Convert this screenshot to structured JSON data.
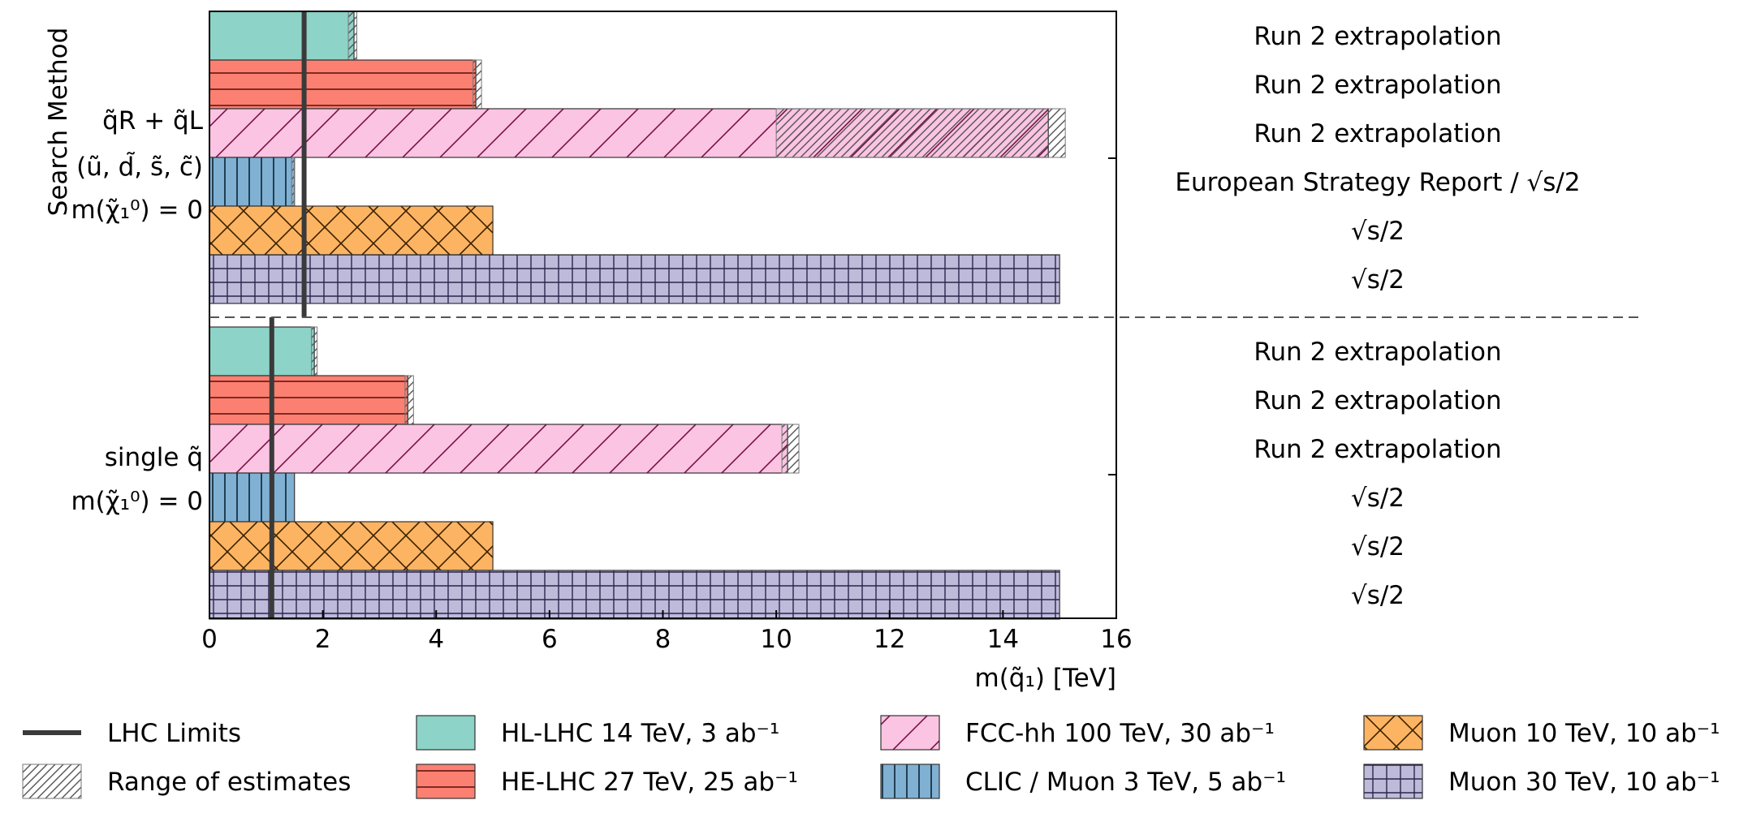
{
  "chart_data": {
    "type": "bar",
    "orientation": "horizontal",
    "xlabel": "m(q̃₁) [TeV]",
    "ylabel": "Search Method",
    "xlim": [
      0,
      16
    ],
    "xticks": [
      "0",
      "2",
      "4",
      "6",
      "8",
      "10",
      "12",
      "14",
      "16"
    ],
    "groups": [
      {
        "lines": [
          "q̃R + q̃L",
          "(ũ, d̃, s̃, c̃)",
          "m(χ̃₁⁰) = 0"
        ],
        "lhc_limit": 1.67,
        "bars": [
          {
            "series": "hl",
            "value": 2.55,
            "range": [
              2.45,
              2.6
            ],
            "note": "Run 2 extrapolation"
          },
          {
            "series": "he",
            "value": 4.7,
            "range": [
              4.65,
              4.8
            ],
            "note": "Run 2 extrapolation"
          },
          {
            "series": "fcc",
            "value": 14.8,
            "range": [
              10.0,
              15.1
            ],
            "note": "Run 2 extrapolation"
          },
          {
            "series": "clic",
            "value": 1.5,
            "range": [
              1.45,
              1.5
            ],
            "note": "European Strategy Report / √s/2"
          },
          {
            "series": "mu10",
            "value": 5.0,
            "range": null,
            "note": "√s/2"
          },
          {
            "series": "mu30",
            "value": 15.0,
            "range": null,
            "note": "√s/2"
          }
        ]
      },
      {
        "lines": [
          "single q̃",
          "m(χ̃₁⁰) = 0"
        ],
        "lhc_limit": 1.1,
        "bars": [
          {
            "series": "hl",
            "value": 1.85,
            "range": [
              1.8,
              1.9
            ],
            "note": "Run 2 extrapolation"
          },
          {
            "series": "he",
            "value": 3.5,
            "range": [
              3.45,
              3.6
            ],
            "note": "Run 2 extrapolation"
          },
          {
            "series": "fcc",
            "value": 10.2,
            "range": [
              10.1,
              10.4
            ],
            "note": "Run 2 extrapolation"
          },
          {
            "series": "clic",
            "value": 1.5,
            "range": null,
            "note": "√s/2"
          },
          {
            "series": "mu10",
            "value": 5.0,
            "range": null,
            "note": "√s/2"
          },
          {
            "series": "mu30",
            "value": 15.0,
            "range": null,
            "note": "√s/2"
          }
        ]
      }
    ],
    "series": [
      {
        "key": "hl",
        "name": "HL-LHC 14 TeV, 3 ab⁻¹",
        "color": "#8dd3c7",
        "hatch": "none"
      },
      {
        "key": "he",
        "name": "HE-LHC 27 TeV, 25 ab⁻¹",
        "color": "#fb8072",
        "hatch": "horizontal"
      },
      {
        "key": "fcc",
        "name": "FCC-hh 100 TeV, 30 ab⁻¹",
        "color": "#fbc4e2",
        "hatch": "diagonal"
      },
      {
        "key": "clic",
        "name": "CLIC / Muon 3 TeV, 5 ab⁻¹",
        "color": "#80b1d3",
        "hatch": "vertical"
      },
      {
        "key": "mu10",
        "name": "Muon 10 TeV, 10 ab⁻¹",
        "color": "#fdb462",
        "hatch": "cross"
      },
      {
        "key": "mu30",
        "name": "Muon 30 TeV, 10 ab⁻¹",
        "color": "#bebada",
        "hatch": "grid"
      }
    ],
    "legend_extra": [
      {
        "key": "lhc",
        "name": "LHC Limits"
      },
      {
        "key": "range",
        "name": "Range of estimates"
      }
    ],
    "legend_placement": "bottom",
    "grid": false
  }
}
